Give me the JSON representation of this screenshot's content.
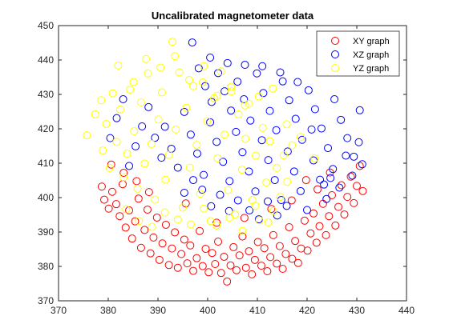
{
  "chart_data": {
    "type": "scatter",
    "title": "Uncalibrated magnetometer data",
    "xlabel": "",
    "ylabel": "",
    "xlim": [
      370,
      440
    ],
    "ylim": [
      370,
      450
    ],
    "xticks": [
      370,
      380,
      390,
      400,
      410,
      420,
      430,
      440
    ],
    "yticks": [
      370,
      380,
      390,
      400,
      410,
      420,
      430,
      440,
      450
    ],
    "grid": false,
    "marker": "open-circle",
    "legend_position": "top-right",
    "series": [
      {
        "name": "XY graph",
        "color": "#ff0000",
        "points": [
          [
            378.7,
            403.2
          ],
          [
            379.2,
            399.4
          ],
          [
            380.1,
            396.8
          ],
          [
            380.8,
            401.7
          ],
          [
            381.6,
            398.1
          ],
          [
            382.3,
            394.6
          ],
          [
            382.9,
            403.9
          ],
          [
            383.5,
            391.3
          ],
          [
            384.2,
            396.3
          ],
          [
            384.8,
            388.1
          ],
          [
            385.4,
            393.1
          ],
          [
            386.1,
            399.7
          ],
          [
            386.6,
            385.4
          ],
          [
            387.3,
            390.6
          ],
          [
            387.9,
            396.5
          ],
          [
            388.5,
            383.8
          ],
          [
            389.1,
            388.4
          ],
          [
            389.8,
            394.2
          ],
          [
            390.3,
            381.9
          ],
          [
            390.9,
            386.7
          ],
          [
            391.6,
            392.1
          ],
          [
            392.2,
            380.4
          ],
          [
            392.8,
            385.2
          ],
          [
            393.4,
            389.9
          ],
          [
            394.0,
            379.6
          ],
          [
            394.7,
            383.6
          ],
          [
            395.3,
            387.8
          ],
          [
            395.9,
            380.9
          ],
          [
            396.5,
            386.1
          ],
          [
            397.1,
            378.7
          ],
          [
            397.8,
            382.4
          ],
          [
            398.4,
            390.3
          ],
          [
            399.0,
            380.1
          ],
          [
            399.6,
            385.1
          ],
          [
            400.2,
            378.3
          ],
          [
            400.9,
            383.9
          ],
          [
            401.5,
            380.7
          ],
          [
            402.1,
            387.2
          ],
          [
            402.7,
            378.1
          ],
          [
            403.3,
            382.8
          ],
          [
            403.9,
            375.6
          ],
          [
            404.6,
            380.3
          ],
          [
            405.2,
            385.6
          ],
          [
            405.8,
            378.9
          ],
          [
            406.4,
            383.2
          ],
          [
            407.0,
            388.7
          ],
          [
            407.7,
            379.6
          ],
          [
            408.3,
            384.4
          ],
          [
            408.9,
            377.7
          ],
          [
            409.5,
            381.9
          ],
          [
            410.1,
            387.1
          ],
          [
            410.8,
            380.2
          ],
          [
            411.4,
            385.3
          ],
          [
            412.0,
            378.6
          ],
          [
            412.6,
            382.7
          ],
          [
            413.2,
            389.1
          ],
          [
            413.9,
            380.8
          ],
          [
            414.5,
            385.9
          ],
          [
            415.1,
            379.3
          ],
          [
            415.7,
            383.6
          ],
          [
            416.4,
            391.4
          ],
          [
            417.0,
            382.2
          ],
          [
            417.6,
            387.4
          ],
          [
            418.2,
            381.0
          ],
          [
            418.8,
            385.2
          ],
          [
            419.5,
            393.3
          ],
          [
            420.1,
            384.6
          ],
          [
            420.7,
            389.6
          ],
          [
            421.3,
            395.4
          ],
          [
            421.9,
            386.9
          ],
          [
            422.5,
            391.7
          ],
          [
            423.2,
            398.2
          ],
          [
            423.8,
            389.1
          ],
          [
            424.4,
            394.6
          ],
          [
            425.0,
            400.7
          ],
          [
            425.7,
            391.9
          ],
          [
            426.3,
            397.3
          ],
          [
            426.9,
            403.6
          ],
          [
            427.5,
            395.1
          ],
          [
            428.1,
            400.2
          ],
          [
            428.8,
            406.1
          ],
          [
            429.4,
            398.4
          ],
          [
            430.0,
            403.4
          ],
          [
            430.6,
            409.2
          ],
          [
            431.2,
            401.9
          ],
          [
            424.6,
            407.3
          ],
          [
            422.1,
            402.4
          ],
          [
            419.8,
            405.1
          ],
          [
            388.2,
            401.6
          ],
          [
            385.7,
            404.8
          ],
          [
            383.1,
            407.2
          ],
          [
            380.6,
            409.6
          ],
          [
            395.6,
            398.3
          ],
          [
            401.8,
            392.7
          ],
          [
            407.4,
            394.1
          ],
          [
            412.8,
            396.7
          ],
          [
            416.9,
            399.2
          ]
        ]
      },
      {
        "name": "XZ graph",
        "color": "#0000ff",
        "points": [
          [
            396.9,
            445.1
          ],
          [
            398.2,
            437.6
          ],
          [
            399.5,
            432.4
          ],
          [
            400.8,
            427.8
          ],
          [
            402.1,
            436.2
          ],
          [
            403.4,
            430.9
          ],
          [
            404.7,
            425.3
          ],
          [
            406.0,
            433.7
          ],
          [
            407.3,
            428.6
          ],
          [
            408.6,
            422.4
          ],
          [
            409.9,
            436.1
          ],
          [
            411.2,
            430.4
          ],
          [
            412.5,
            425.2
          ],
          [
            413.8,
            419.6
          ],
          [
            415.1,
            433.8
          ],
          [
            416.4,
            428.3
          ],
          [
            417.7,
            422.9
          ],
          [
            419.0,
            416.8
          ],
          [
            420.3,
            431.2
          ],
          [
            421.6,
            425.7
          ],
          [
            422.9,
            420.1
          ],
          [
            424.2,
            414.4
          ],
          [
            425.5,
            428.6
          ],
          [
            426.8,
            422.6
          ],
          [
            428.1,
            417.3
          ],
          [
            429.4,
            411.9
          ],
          [
            430.6,
            425.4
          ],
          [
            391.4,
            420.6
          ],
          [
            392.7,
            414.2
          ],
          [
            394.0,
            408.7
          ],
          [
            395.3,
            424.9
          ],
          [
            396.6,
            418.3
          ],
          [
            397.9,
            412.8
          ],
          [
            399.2,
            406.6
          ],
          [
            400.5,
            421.9
          ],
          [
            401.8,
            416.2
          ],
          [
            403.1,
            410.4
          ],
          [
            404.4,
            404.8
          ],
          [
            405.7,
            419.1
          ],
          [
            407.0,
            413.2
          ],
          [
            408.3,
            407.6
          ],
          [
            409.6,
            401.8
          ],
          [
            410.9,
            416.7
          ],
          [
            412.2,
            410.9
          ],
          [
            413.5,
            405.1
          ],
          [
            414.8,
            399.3
          ],
          [
            416.1,
            413.4
          ],
          [
            417.4,
            407.6
          ],
          [
            418.7,
            401.9
          ],
          [
            420.0,
            396.4
          ],
          [
            421.3,
            410.8
          ],
          [
            422.6,
            405.2
          ],
          [
            423.9,
            399.6
          ],
          [
            425.2,
            408.3
          ],
          [
            426.5,
            402.9
          ],
          [
            427.8,
            412.2
          ],
          [
            429.1,
            406.4
          ],
          [
            430.4,
            416.1
          ],
          [
            431.1,
            409.7
          ],
          [
            408.4,
            396.3
          ],
          [
            410.3,
            393.7
          ],
          [
            412.1,
            398.9
          ],
          [
            414.0,
            394.8
          ],
          [
            415.9,
            397.6
          ],
          [
            406.1,
            399.2
          ],
          [
            404.3,
            396.1
          ],
          [
            402.5,
            400.8
          ],
          [
            400.7,
            397.5
          ],
          [
            398.9,
            402.3
          ],
          [
            397.1,
            405.1
          ],
          [
            395.3,
            401.4
          ],
          [
            389.4,
            417.4
          ],
          [
            390.7,
            411.6
          ],
          [
            388.1,
            426.3
          ],
          [
            386.8,
            420.7
          ],
          [
            385.5,
            414.9
          ],
          [
            384.2,
            409.2
          ],
          [
            383.0,
            428.6
          ],
          [
            381.7,
            423.1
          ],
          [
            380.4,
            417.3
          ],
          [
            418.1,
            433.6
          ],
          [
            414.6,
            436.4
          ],
          [
            411.0,
            438.2
          ],
          [
            407.5,
            438.6
          ],
          [
            404.0,
            439.1
          ],
          [
            400.5,
            440.7
          ],
          [
            420.9,
            419.8
          ],
          [
            423.4,
            403.8
          ],
          [
            424.7,
            405.7
          ]
        ]
      },
      {
        "name": "YZ graph",
        "color": "#ffff00",
        "points": [
          [
            375.7,
            418.1
          ],
          [
            377.4,
            424.2
          ],
          [
            378.6,
            428.3
          ],
          [
            378.9,
            413.7
          ],
          [
            379.6,
            421.4
          ],
          [
            380.3,
            408.6
          ],
          [
            380.9,
            430.3
          ],
          [
            381.7,
            416.2
          ],
          [
            382.4,
            425.6
          ],
          [
            383.1,
            405.9
          ],
          [
            383.8,
            412.8
          ],
          [
            384.4,
            431.4
          ],
          [
            385.2,
            419.3
          ],
          [
            385.9,
            402.6
          ],
          [
            386.6,
            427.7
          ],
          [
            387.3,
            409.9
          ],
          [
            388.0,
            436.1
          ],
          [
            388.7,
            415.6
          ],
          [
            389.4,
            399.4
          ],
          [
            390.1,
            422.7
          ],
          [
            390.8,
            430.6
          ],
          [
            391.5,
            405.2
          ],
          [
            392.2,
            412.4
          ],
          [
            392.9,
            445.3
          ],
          [
            393.6,
            419.8
          ],
          [
            394.3,
            436.4
          ],
          [
            395.0,
            397.1
          ],
          [
            395.7,
            426.1
          ],
          [
            396.4,
            408.7
          ],
          [
            397.1,
            432.4
          ],
          [
            397.8,
            415.3
          ],
          [
            398.5,
            401.1
          ],
          [
            399.2,
            438.2
          ],
          [
            399.9,
            422.2
          ],
          [
            400.6,
            393.2
          ],
          [
            401.3,
            428.9
          ],
          [
            402.0,
            411.4
          ],
          [
            402.7,
            436.7
          ],
          [
            403.4,
            418.3
          ],
          [
            404.1,
            402.2
          ],
          [
            404.8,
            430.9
          ],
          [
            405.5,
            395.1
          ],
          [
            406.2,
            424.2
          ],
          [
            406.9,
            408.1
          ],
          [
            407.6,
            417.1
          ],
          [
            408.3,
            427.3
          ],
          [
            409.0,
            399.3
          ],
          [
            409.7,
            412.2
          ],
          [
            410.4,
            393.4
          ],
          [
            411.1,
            420.3
          ],
          [
            411.8,
            404.4
          ],
          [
            412.5,
            416.4
          ],
          [
            413.2,
            396.1
          ],
          [
            413.9,
            408.6
          ],
          [
            414.6,
            400.2
          ],
          [
            415.3,
            412.3
          ],
          [
            416.0,
            404.6
          ],
          [
            417.0,
            415.2
          ],
          [
            383.6,
            396.6
          ],
          [
            386.2,
            393.2
          ],
          [
            388.8,
            391.5
          ],
          [
            391.4,
            395.7
          ],
          [
            394.0,
            393.6
          ],
          [
            396.6,
            392.2
          ],
          [
            399.2,
            396.8
          ],
          [
            401.8,
            391.9
          ],
          [
            404.4,
            394.2
          ],
          [
            407.0,
            390.3
          ],
          [
            409.6,
            397.6
          ],
          [
            412.2,
            392.8
          ],
          [
            382.0,
            438.4
          ],
          [
            385.1,
            433.6
          ],
          [
            387.6,
            440.3
          ],
          [
            390.5,
            437.8
          ],
          [
            393.4,
            441.1
          ],
          [
            396.3,
            434.2
          ],
          [
            399.0,
            433.5
          ],
          [
            401.9,
            429.6
          ],
          [
            404.7,
            432.2
          ],
          [
            407.5,
            426.8
          ],
          [
            410.3,
            429.4
          ],
          [
            413.1,
            431.7
          ],
          [
            415.9,
            421.3
          ],
          [
            418.7,
            417.6
          ],
          [
            421.5,
            411.4
          ],
          [
            424.3,
            437.2
          ]
        ]
      }
    ]
  },
  "legend": {
    "entries": [
      "XY graph",
      "XZ graph",
      "YZ graph"
    ]
  }
}
